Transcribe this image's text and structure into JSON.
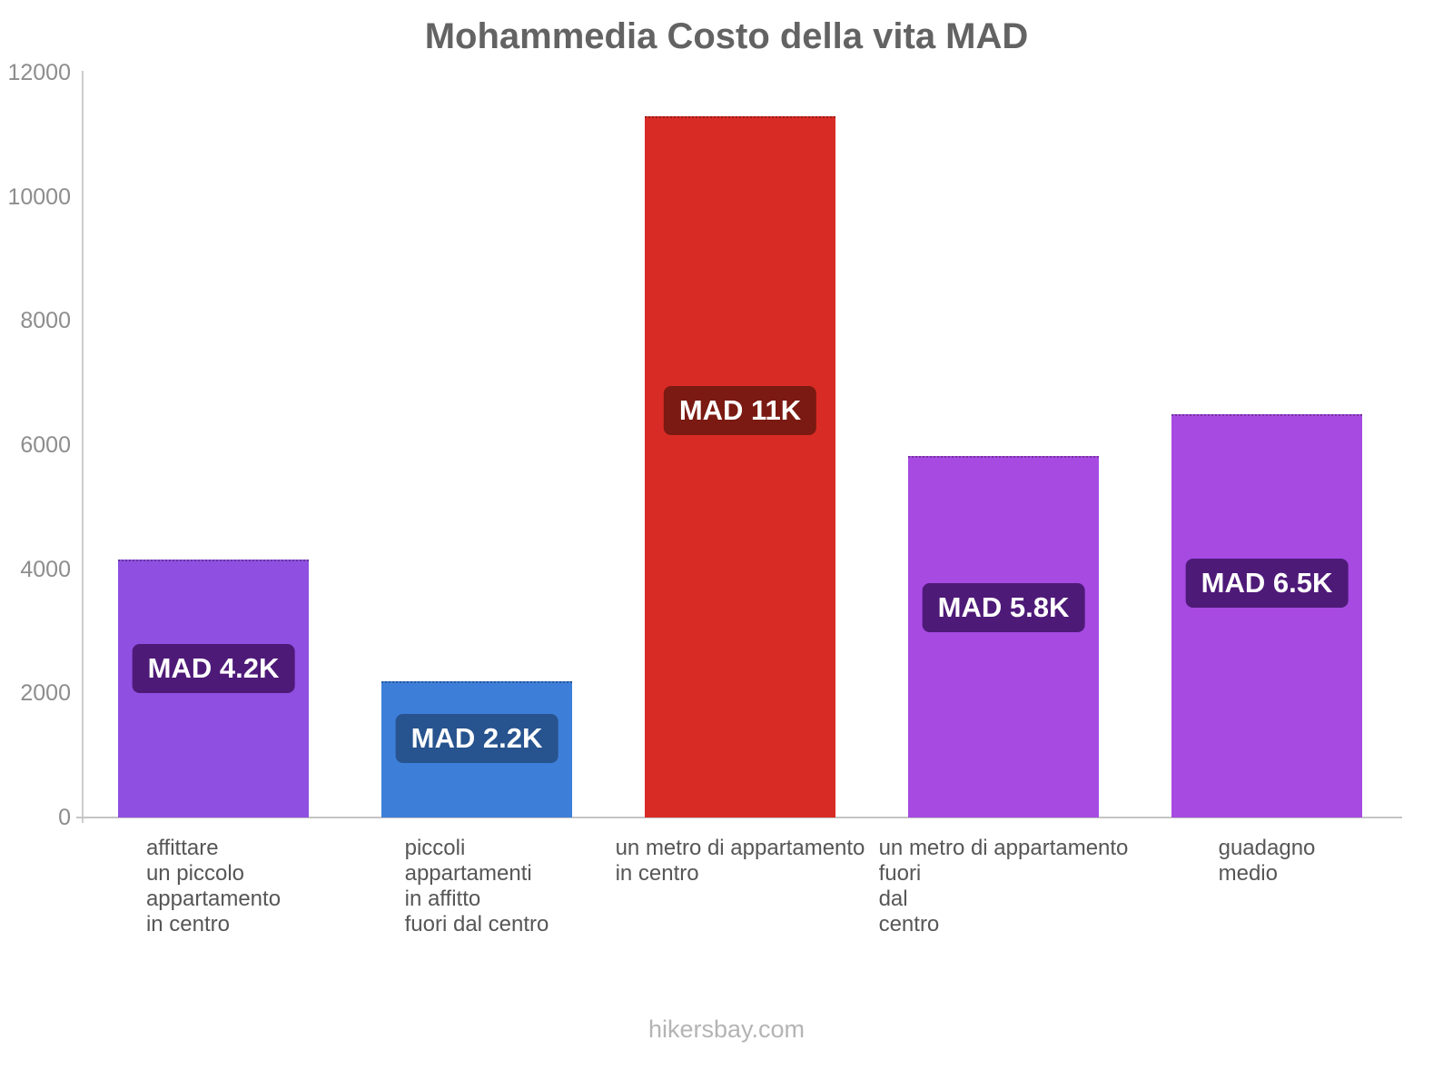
{
  "title": "Mohammedia Costo della vita MAD",
  "footer": "hikersbay.com",
  "chart_data": {
    "type": "bar",
    "title": "Mohammedia Costo della vita MAD",
    "currency": "MAD",
    "xlabel": "",
    "ylabel": "",
    "ylim": [
      0,
      12000
    ],
    "yticks": [
      0,
      2000,
      4000,
      6000,
      8000,
      10000,
      12000
    ],
    "grid": false,
    "legend": "none",
    "categories": [
      "affittare un piccolo appartamento in centro",
      "piccoli appartamenti in affitto fuori dal centro",
      "un metro di appartamento in centro",
      "un metro di appartamento fuori dal centro",
      "guadagno medio"
    ],
    "category_lines": [
      [
        "affittare",
        "un piccolo",
        "appartamento",
        "in centro"
      ],
      [
        "piccoli",
        "appartamenti",
        "in affitto",
        "fuori dal centro"
      ],
      [
        "un metro di appartamento",
        "in centro"
      ],
      [
        "un metro di appartamento",
        "fuori",
        "dal",
        "centro"
      ],
      [
        "guadagno",
        "medio"
      ]
    ],
    "values": [
      4150,
      2200,
      11300,
      5830,
      6500
    ],
    "value_labels": [
      "MAD 4.2K",
      "MAD 2.2K",
      "MAD 11K",
      "MAD 5.8K",
      "MAD 6.5K"
    ],
    "bar_colors": [
      "#8f4fe0",
      "#3d7ed8",
      "#d92b25",
      "#a64ae2",
      "#a64ae2"
    ],
    "label_colors": [
      "#4e1a78",
      "#27538e",
      "#7a1a12",
      "#4e1a78",
      "#4e1a78"
    ]
  }
}
